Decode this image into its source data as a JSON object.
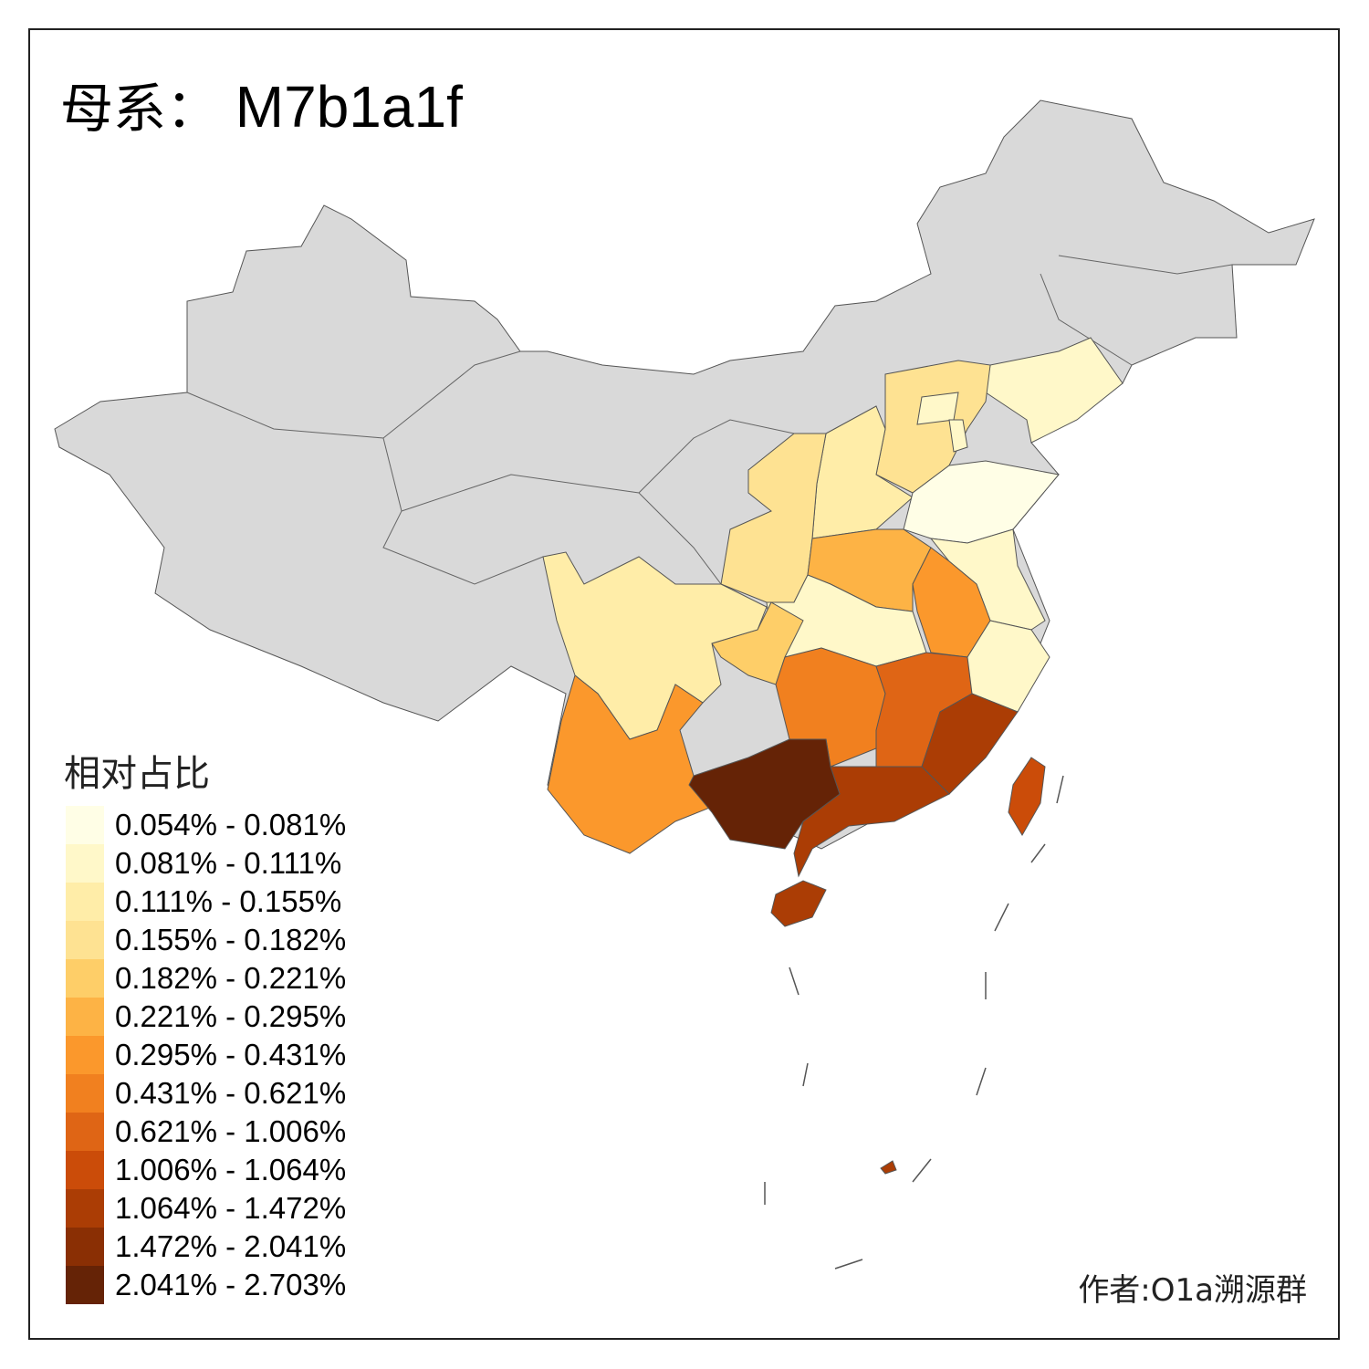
{
  "title": {
    "prefix": "母系：",
    "haplogroup": "M7b1a1f"
  },
  "legend": {
    "title": "相对占比",
    "bins": [
      {
        "label": "0.054% - 0.081%",
        "color": "#FFFEE6"
      },
      {
        "label": "0.081% - 0.111%",
        "color": "#FFF8C9"
      },
      {
        "label": "0.111% - 0.155%",
        "color": "#FFEDA8"
      },
      {
        "label": "0.155% - 0.182%",
        "color": "#FEE292"
      },
      {
        "label": "0.182% - 0.221%",
        "color": "#FECE68"
      },
      {
        "label": "0.221% - 0.295%",
        "color": "#FDB345"
      },
      {
        "label": "0.295% - 0.431%",
        "color": "#FB982C"
      },
      {
        "label": "0.431% - 0.621%",
        "color": "#F1801F"
      },
      {
        "label": "0.621% - 1.006%",
        "color": "#DF6515"
      },
      {
        "label": "1.006% - 1.064%",
        "color": "#CB4C09"
      },
      {
        "label": "1.064% - 1.472%",
        "color": "#AB3D05"
      },
      {
        "label": "1.472% - 2.041%",
        "color": "#8A2F04"
      },
      {
        "label": "2.041% - 2.703%",
        "color": "#652306"
      }
    ]
  },
  "no_data_color": "#D9D9D9",
  "region_bins": {
    "liaoning": 1,
    "hebei": 3,
    "beijing": 1,
    "tianjin": 1,
    "shanxi": 2,
    "shaanxi": 3,
    "shandong": 0,
    "henan": 5,
    "jiangsu": 1,
    "anhui": 6,
    "hubei": 1,
    "chongqing": 4,
    "sichuan": 2,
    "yunnan": 6,
    "hunan": 7,
    "jiangxi": 8,
    "zhejiang": 1,
    "fujian": 10,
    "guangdong": 10,
    "guangxi": 12,
    "hainan": 10,
    "taiwan": 9
  },
  "author": "作者:O1a溯源群"
}
